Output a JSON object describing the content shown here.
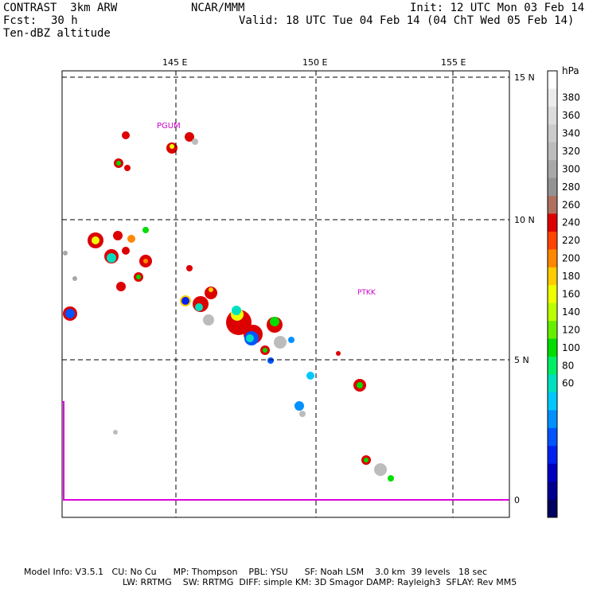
{
  "header": {
    "model": "CONTRAST  3km ARW",
    "org": "NCAR/MMM",
    "init": "Init: 12 UTC Mon 03 Feb 14",
    "fcst_label": "Fcst:",
    "fcst_value": "30 h",
    "valid": "Valid: 18 UTC Tue 04 Feb 14 (04 ChT Wed 05 Feb 14)",
    "field": "Ten-dBZ altitude"
  },
  "map": {
    "lon_labels": [
      "145 E",
      "150 E",
      "155 E"
    ],
    "lat_labels": [
      "15 N",
      "10 N",
      "5 N",
      "0"
    ],
    "stations": [
      "PGUM",
      "PTKK"
    ],
    "boundary_color": "#dd00dd"
  },
  "colorbar": {
    "unit": "hPa",
    "ticks": [
      "380",
      "360",
      "340",
      "320",
      "300",
      "280",
      "260",
      "240",
      "220",
      "200",
      "180",
      "160",
      "140",
      "120",
      "100",
      "80",
      "60"
    ],
    "colors": [
      "#ffffff",
      "#ececec",
      "#dcdcdc",
      "#cbcbcb",
      "#bcbcbc",
      "#a8a8a8",
      "#939393",
      "#b07060",
      "#dd0000",
      "#ff4400",
      "#ff8800",
      "#ffcc00",
      "#eeff00",
      "#bbff00",
      "#66ee00",
      "#00dd00",
      "#00ee66",
      "#00e0c0",
      "#00c8ff",
      "#0090ff",
      "#0055ff",
      "#0022ee",
      "#0000c0",
      "#000090",
      "#000060"
    ]
  },
  "footer": {
    "line1": "Model Info: V3.5.1   CU: No Cu      MP: Thompson    PBL: YSU      SF: Noah LSM    3.0 km  39 levels   18 sec",
    "line2": "LW: RRTMG    SW: RRTMG  DIFF: simple KM: 3D Smagor DAMP: Rayleigh3  SFLAY: Rev MM5"
  }
}
